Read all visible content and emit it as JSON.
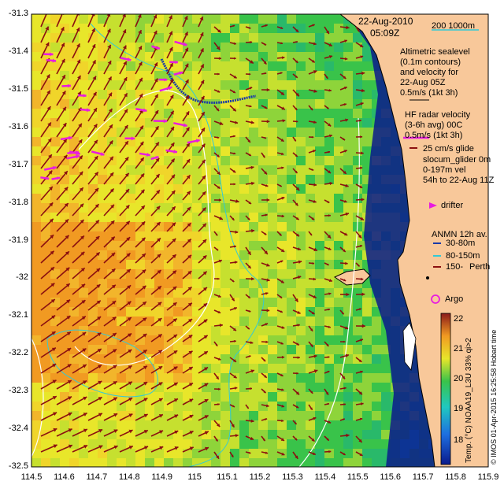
{
  "map": {
    "date": "22-Aug-2010",
    "time": "05:09Z",
    "scale_label": "200 1000m",
    "colors": {
      "land": "#f8c89a",
      "deep": "#0a1a8c",
      "contour": "#ffffff",
      "bathy": "#33c9d6",
      "arrow_dark": "#8b1010",
      "arrow_magenta": "#e81ce0",
      "black": "#000000"
    },
    "lon_ticks": [
      "114.5",
      "114.6",
      "114.7",
      "114.8",
      "114.9",
      "115",
      "115.1",
      "115.2",
      "115.3",
      "115.4",
      "115.5",
      "115.6",
      "115.7",
      "115.8",
      "115.9"
    ],
    "lat_ticks": [
      "-31.3",
      "-31.4",
      "-31.5",
      "-31.6",
      "-31.7",
      "-31.8",
      "-31.9",
      "-32",
      "-32.1",
      "-32.2",
      "-32.3",
      "-32.4",
      "-32.5"
    ],
    "legend": {
      "altimetric": [
        "Altimetric sealevel",
        "(0.1m contours)",
        "and velocity for",
        "22-Aug 05Z",
        "0.5m/s (1kt 3h)"
      ],
      "hf_radar": [
        "HF radar velocity",
        "(3-6h avg) 00C",
        "0.5m/s (1kt 3h)"
      ],
      "glider": [
        "25 cm/s glide",
        "slocum_glider 0m",
        "0-197m vel",
        "54h to 22-Aug 11Z"
      ],
      "drifter": "drifter",
      "anmn_title": "ANMN 12h av.",
      "anmn_items": [
        "30-80m",
        "80-150m",
        "150-"
      ],
      "place": "Perth",
      "argo": "Argo"
    },
    "colorbar": {
      "ticks": [
        "22",
        "21",
        "20",
        "19",
        "18"
      ],
      "label": "Temp. (°C) NOAA19_L3U 33% qi>2"
    },
    "credit": "© IMOS 01-Apr-2015 16:25:58 Hobart time"
  }
}
